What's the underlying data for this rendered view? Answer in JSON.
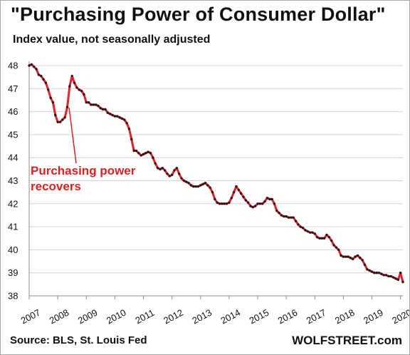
{
  "header": {
    "title": "\"Purchasing Power of Consumer Dollar\"",
    "subtitle": "Index value, not seasonally adjusted"
  },
  "footer": {
    "source": "Source: BLS, St. Louis Fed",
    "brand": "WOLFSTREET.com"
  },
  "annotation": {
    "line1": "Purchasing power",
    "line2": "recovers"
  },
  "colors": {
    "line": "#e8202a",
    "marker": "#2a1416",
    "grid": "#d4d4d4",
    "annotation": "#e02020"
  },
  "chart_data": {
    "type": "line",
    "title": "\"Purchasing Power of Consumer Dollar\"",
    "subtitle": "Index value, not seasonally adjusted",
    "xlabel": "",
    "ylabel": "",
    "ylim": [
      38,
      48
    ],
    "xlim": [
      "2007-01",
      "2020-02"
    ],
    "grid": "horizontal",
    "legend": "none",
    "yticks": [
      "38",
      "39",
      "40",
      "41",
      "42",
      "43",
      "44",
      "45",
      "46",
      "47",
      "48"
    ],
    "xticks": [
      "2007",
      "2008",
      "2009",
      "2010",
      "2011",
      "2012",
      "2013",
      "2014",
      "2015",
      "2016",
      "2017",
      "2018",
      "2019",
      "2020"
    ],
    "series": [
      {
        "markers": true,
        "x": [
          "2007-01",
          "2007-02",
          "2007-03",
          "2007-04",
          "2007-05",
          "2007-06",
          "2007-07",
          "2007-08",
          "2007-09",
          "2007-10",
          "2007-11",
          "2007-12",
          "2008-01",
          "2008-02",
          "2008-03",
          "2008-04",
          "2008-05",
          "2008-06",
          "2008-07",
          "2008-08",
          "2008-09",
          "2008-10",
          "2008-11",
          "2008-12",
          "2009-01",
          "2009-02",
          "2009-03",
          "2009-04",
          "2009-05",
          "2009-06",
          "2009-07",
          "2009-08",
          "2009-09",
          "2009-10",
          "2009-11",
          "2009-12",
          "2010-01",
          "2010-02",
          "2010-03",
          "2010-04",
          "2010-05",
          "2010-06",
          "2010-07",
          "2010-08",
          "2010-09",
          "2010-10",
          "2010-11",
          "2010-12",
          "2011-01",
          "2011-02",
          "2011-03",
          "2011-04",
          "2011-05",
          "2011-06",
          "2011-07",
          "2011-08",
          "2011-09",
          "2011-10",
          "2011-11",
          "2011-12",
          "2012-01",
          "2012-02",
          "2012-03",
          "2012-04",
          "2012-05",
          "2012-06",
          "2012-07",
          "2012-08",
          "2012-09",
          "2012-10",
          "2012-11",
          "2012-12",
          "2013-01",
          "2013-02",
          "2013-03",
          "2013-04",
          "2013-05",
          "2013-06",
          "2013-07",
          "2013-08",
          "2013-09",
          "2013-10",
          "2013-11",
          "2013-12",
          "2014-01",
          "2014-02",
          "2014-03",
          "2014-04",
          "2014-05",
          "2014-06",
          "2014-07",
          "2014-08",
          "2014-09",
          "2014-10",
          "2014-11",
          "2014-12",
          "2015-01",
          "2015-02",
          "2015-03",
          "2015-04",
          "2015-05",
          "2015-06",
          "2015-07",
          "2015-08",
          "2015-09",
          "2015-10",
          "2015-11",
          "2015-12",
          "2016-01",
          "2016-02",
          "2016-03",
          "2016-04",
          "2016-05",
          "2016-06",
          "2016-07",
          "2016-08",
          "2016-09",
          "2016-10",
          "2016-11",
          "2016-12",
          "2017-01",
          "2017-02",
          "2017-03",
          "2017-04",
          "2017-05",
          "2017-06",
          "2017-07",
          "2017-08",
          "2017-09",
          "2017-10",
          "2017-11",
          "2017-12",
          "2018-01",
          "2018-02",
          "2018-03",
          "2018-04",
          "2018-05",
          "2018-06",
          "2018-07",
          "2018-08",
          "2018-09",
          "2018-10",
          "2018-11",
          "2018-12",
          "2019-01",
          "2019-02",
          "2019-03",
          "2019-04",
          "2019-05",
          "2019-06",
          "2019-07",
          "2019-08",
          "2019-09",
          "2019-10",
          "2019-11",
          "2019-12",
          "2020-01",
          "2020-02"
        ],
        "values": [
          48.0,
          48.05,
          47.95,
          47.85,
          47.6,
          47.55,
          47.4,
          47.25,
          46.95,
          46.6,
          46.4,
          45.85,
          45.55,
          45.55,
          45.65,
          45.75,
          46.2,
          47.1,
          47.55,
          47.25,
          47.05,
          46.95,
          46.9,
          46.75,
          46.4,
          46.4,
          46.3,
          46.3,
          46.3,
          46.25,
          46.15,
          46.1,
          46.1,
          45.95,
          45.9,
          45.85,
          45.8,
          45.8,
          45.75,
          45.7,
          45.65,
          45.5,
          45.25,
          44.8,
          44.3,
          44.3,
          44.2,
          44.1,
          44.15,
          44.2,
          44.25,
          44.2,
          44.0,
          43.75,
          43.55,
          43.5,
          43.55,
          43.45,
          43.3,
          43.2,
          43.25,
          43.45,
          43.55,
          43.3,
          43.1,
          43.0,
          42.95,
          42.9,
          42.8,
          42.75,
          42.75,
          42.75,
          42.8,
          42.85,
          42.9,
          42.8,
          42.7,
          42.5,
          42.2,
          42.05,
          42.0,
          42.0,
          42.0,
          42.0,
          42.05,
          42.25,
          42.5,
          42.75,
          42.6,
          42.45,
          42.3,
          42.15,
          42.05,
          41.9,
          41.85,
          41.9,
          42.0,
          42.0,
          42.0,
          42.1,
          42.25,
          42.2,
          42.2,
          42.0,
          41.7,
          41.6,
          41.5,
          41.45,
          41.45,
          41.4,
          41.4,
          41.4,
          41.25,
          41.1,
          41.0,
          40.95,
          40.85,
          40.8,
          40.75,
          40.75,
          40.7,
          40.55,
          40.5,
          40.5,
          40.5,
          40.65,
          40.55,
          40.4,
          40.2,
          40.1,
          40.0,
          39.75,
          39.7,
          39.7,
          39.7,
          39.65,
          39.6,
          39.7,
          39.75,
          39.65,
          39.55,
          39.35,
          39.15,
          39.1,
          39.05,
          39.0,
          39.0,
          39.0,
          38.95,
          38.9,
          38.9,
          38.85,
          38.85,
          38.8,
          38.75,
          38.7,
          39.0,
          38.6
        ]
      }
    ]
  }
}
